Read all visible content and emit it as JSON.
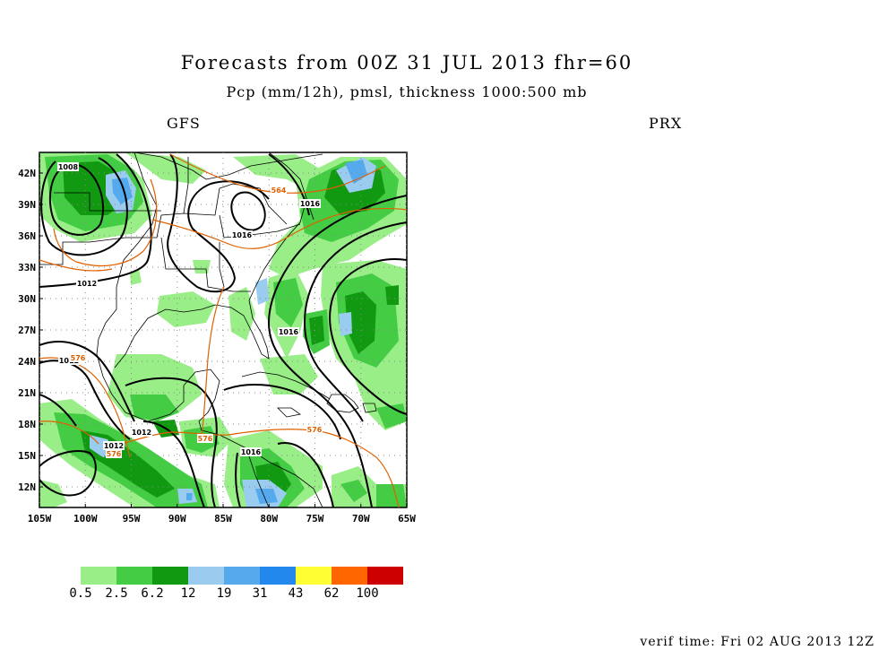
{
  "header": {
    "title": "Forecasts from 00Z 31 JUL 2013  fhr=60",
    "subtitle": "Pcp (mm/12h), pmsl, thickness 1000:500 mb"
  },
  "panels": {
    "left_label": "GFS",
    "right_label": "PRX"
  },
  "map": {
    "lat_labels": [
      "42N",
      "39N",
      "36N",
      "33N",
      "30N",
      "27N",
      "24N",
      "21N",
      "18N",
      "15N",
      "12N"
    ],
    "lon_labels": [
      "105W",
      "100W",
      "95W",
      "90W",
      "85W",
      "80W",
      "75W",
      "70W",
      "65W"
    ],
    "pmsl_labels": [
      "1008",
      "1012",
      "1016",
      "1016",
      "1012",
      "1012",
      "1012",
      "1016",
      "1016"
    ],
    "thickness_labels": [
      "564",
      "576",
      "576",
      "576",
      "576"
    ],
    "colors": {
      "isobar": "#000000",
      "thickness": "#e06000",
      "map_outline": "#000000"
    }
  },
  "colorbar": {
    "labels": [
      "0.5",
      "2.5",
      "6.2",
      "12",
      "19",
      "31",
      "43",
      "62",
      "100"
    ],
    "colors": [
      "#99ee88",
      "#44cc44",
      "#119911",
      "#99ccee",
      "#55aaee",
      "#2288ee",
      "#ffff33",
      "#ff6600",
      "#cc0000"
    ]
  },
  "footer": {
    "verif": "verif time: Fri 02 AUG 2013 12Z"
  }
}
